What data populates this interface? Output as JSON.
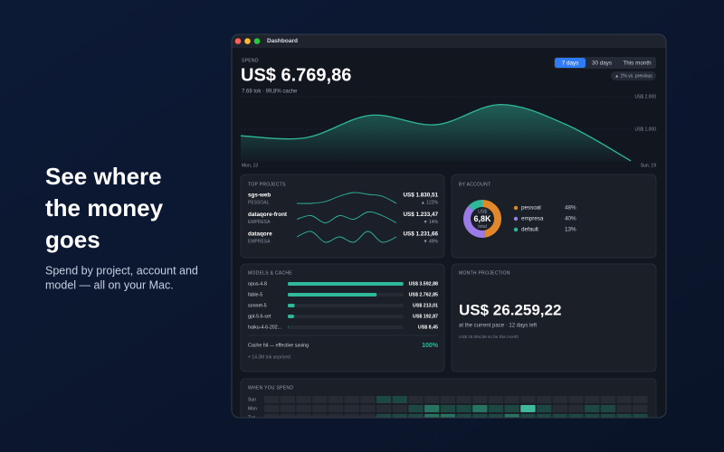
{
  "hero": {
    "headline": [
      "See where",
      "the money",
      "goes"
    ],
    "subtitle": [
      "Spend by project, account and",
      "model — all on your Mac."
    ]
  },
  "window": {
    "title": "Dashboard"
  },
  "spend": {
    "label": "SPEND",
    "total": "US$ 6.769,86",
    "detail": "7.68 tok · 99,8% cache",
    "ranges": [
      "7 days",
      "30 days",
      "This month"
    ],
    "active_range": 0,
    "change": "▲ 1% vs. previous",
    "chart": {
      "type": "area",
      "categories": [
        "Mon, 13",
        null,
        null,
        null,
        null,
        null,
        "Sun, 19"
      ],
      "values": [
        800,
        740,
        1430,
        1140,
        1760,
        1150,
        30
      ],
      "color": "#2fb89a",
      "ylim": [
        0,
        2200
      ],
      "yticks": [
        {
          "value": 1000,
          "label": "US$ 1.000"
        },
        {
          "value": 2000,
          "label": "US$ 2.000"
        }
      ],
      "grid": true
    }
  },
  "top_projects": {
    "title": "TOP PROJECTS",
    "rows": [
      {
        "name": "sgs-web",
        "account": "PESSOAL",
        "amount": "US$ 1.830,51",
        "change": "▲ 122%",
        "trend": [
          2,
          2,
          3,
          6,
          8,
          7,
          6,
          2
        ]
      },
      {
        "name": "dataqore-front",
        "account": "EMPRESA",
        "amount": "US$ 1.233,47",
        "change": "▼ 14%",
        "trend": [
          4,
          5,
          3,
          5,
          4,
          6,
          5,
          3
        ]
      },
      {
        "name": "dataqore",
        "account": "EMPRESA",
        "amount": "US$ 1.231,66",
        "change": "▼ 49%",
        "trend": [
          4,
          5,
          3,
          4,
          3,
          5,
          3,
          4
        ]
      }
    ]
  },
  "by_account": {
    "title": "BY ACCOUNT",
    "center": [
      "US$",
      "6,8K",
      "total"
    ],
    "rows": [
      {
        "name": "pessoal",
        "value": 48,
        "label": "48%",
        "color": "#e0882a"
      },
      {
        "name": "empresa",
        "value": 40,
        "label": "40%",
        "color": "#9b7be8"
      },
      {
        "name": "default",
        "value": 13,
        "label": "13%",
        "color": "#2fb89a"
      }
    ]
  },
  "models": {
    "title": "MODELS & CACHE",
    "xlim": [
      0,
      3600
    ],
    "color": "#2fb89a",
    "rows": [
      {
        "name": "opus-4-8",
        "value": 3592.88,
        "label": "US$ 3.592,88"
      },
      {
        "name": "fable-5",
        "value": 2762.85,
        "label": "US$ 2.762,85"
      },
      {
        "name": "sonnet-5",
        "value": 213.01,
        "label": "US$ 213,01"
      },
      {
        "name": "gpt-5.6-set",
        "value": 192.87,
        "label": "US$ 192,87"
      },
      {
        "name": "haiku-4-6-202...",
        "value": 8.45,
        "label": "US$ 8,45"
      }
    ],
    "cache_label": "Cache hit — effective saving",
    "cache_value": "100%",
    "unpriced": "+ 14.3M tok unpriced"
  },
  "projection": {
    "title": "MONTH PROJECTION",
    "amount": "US$ 26.259,22",
    "pace": "at the current pace · 12 days left",
    "so_far": "US$ 16.094,56 so far this month"
  },
  "heatmap": {
    "title": "WHEN YOU SPEND",
    "colors": [
      "#262b34",
      "#1d4842",
      "#27735f",
      "#3fb89c"
    ],
    "rows": [
      {
        "day": "Sun",
        "levels": [
          0,
          0,
          0,
          0,
          0,
          0,
          0,
          1,
          1,
          0,
          0,
          0,
          0,
          0,
          0,
          0,
          0,
          0,
          0,
          0,
          0,
          0,
          0,
          0
        ]
      },
      {
        "day": "Mon",
        "levels": [
          0,
          0,
          0,
          0,
          0,
          0,
          0,
          0,
          0,
          1,
          2,
          1,
          1,
          2,
          1,
          1,
          3,
          1,
          0,
          0,
          1,
          1,
          0,
          0
        ]
      },
      {
        "day": "Tue",
        "levels": [
          0,
          0,
          0,
          0,
          0,
          0,
          0,
          1,
          1,
          1,
          2,
          2,
          1,
          1,
          1,
          2,
          1,
          1,
          1,
          1,
          1,
          1,
          1,
          1
        ]
      }
    ]
  }
}
